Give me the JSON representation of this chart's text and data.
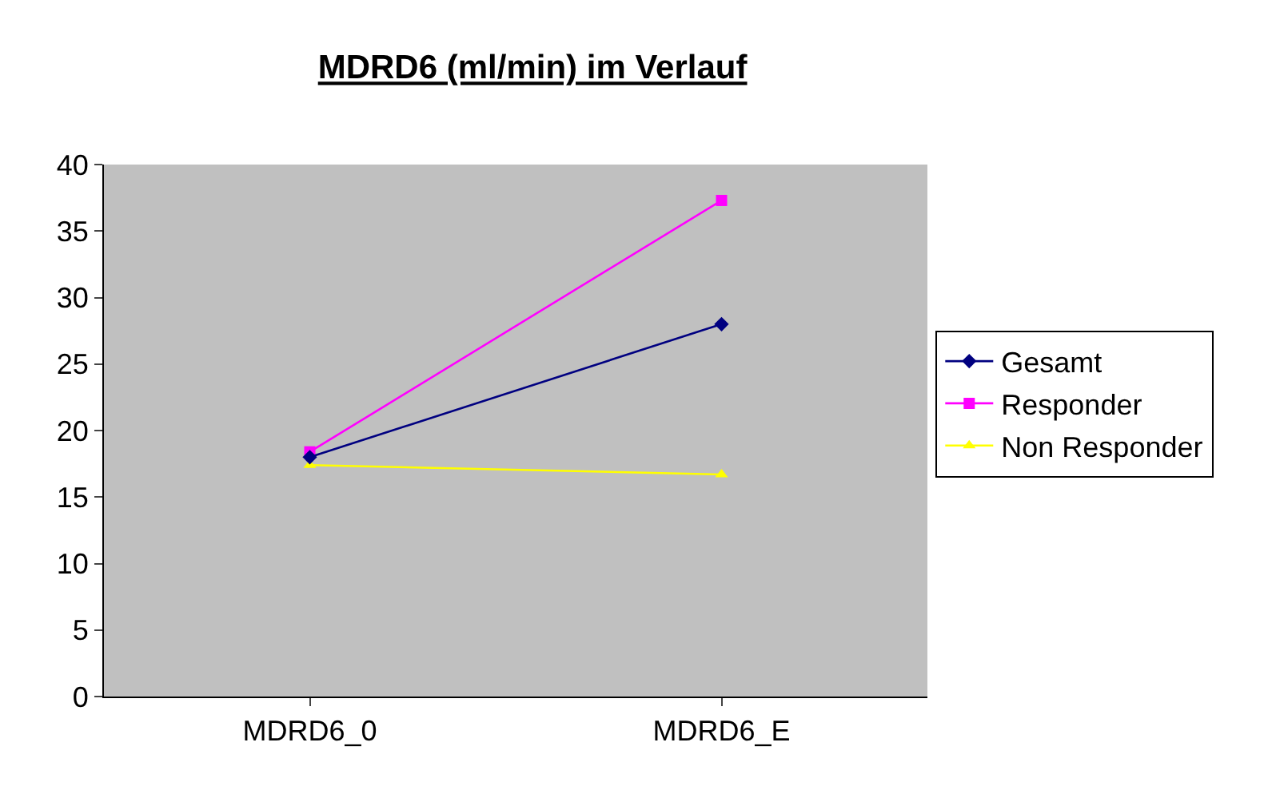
{
  "chart_data": {
    "type": "line",
    "title": "MDRD6 (ml/min) im Verlauf",
    "categories": [
      "MDRD6_0",
      "MDRD6_E"
    ],
    "series": [
      {
        "name": "Gesamt",
        "color": "#000080",
        "values": [
          18.0,
          28.0
        ],
        "marker": "diamond"
      },
      {
        "name": "Responder",
        "color": "#ff00ff",
        "values": [
          18.4,
          37.3
        ],
        "marker": "square"
      },
      {
        "name": "Non Responder",
        "color": "#ffff00",
        "values": [
          17.4,
          16.7
        ],
        "marker": "triangle"
      }
    ],
    "ylim": [
      0,
      40
    ],
    "yticks": [
      0,
      5,
      10,
      15,
      20,
      25,
      30,
      35,
      40
    ],
    "grid": false,
    "legend": "right"
  }
}
